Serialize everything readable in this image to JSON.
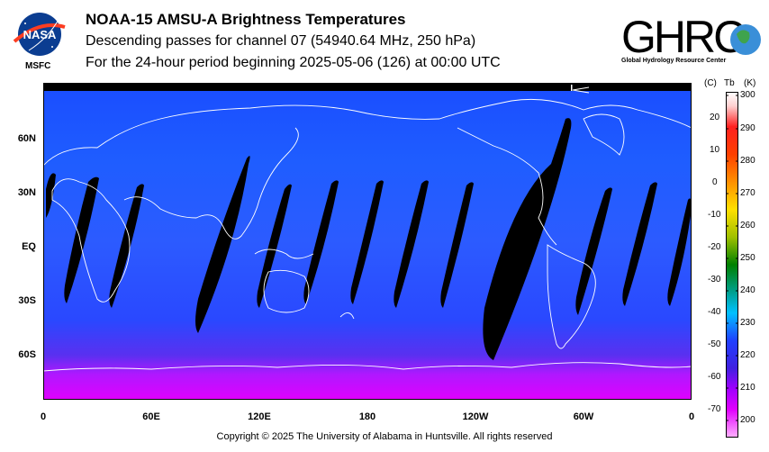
{
  "header": {
    "title": "NOAA-15 AMSU-A Brightness Temperatures",
    "subtitle": "Descending passes for channel 07 (54940.64 MHz, 250 hPa)",
    "period": "For the 24-hour period beginning 2025-05-06 (126) at 00:00 UTC"
  },
  "logos": {
    "nasa_text": "NASA",
    "msfc": "MSFC",
    "ghrc_text": "GHRC",
    "ghrc_subtitle": "Global Hydrology Resource Center"
  },
  "map": {
    "lat_labels": [
      "60N",
      "30N",
      "EQ",
      "30S",
      "60S"
    ],
    "lon_labels": [
      "0",
      "60E",
      "120E",
      "180",
      "120W",
      "60W",
      "0"
    ],
    "colors": {
      "background_top": "#1d5cff",
      "background_mid": "#2a55ff",
      "polar_south": "#c000ff",
      "gap": "#000000",
      "coast": "#ffffff"
    }
  },
  "colorbar": {
    "unit_c": "(C)",
    "unit_tb": "Tb",
    "unit_k": "(K)",
    "celsius_labels": [
      "20",
      "10",
      "0",
      "-10",
      "-20",
      "-30",
      "-40",
      "-50",
      "-60",
      "-70"
    ],
    "kelvin_labels": [
      "300",
      "290",
      "280",
      "270",
      "260",
      "250",
      "240",
      "230",
      "220",
      "210",
      "200"
    ]
  },
  "footer": {
    "copyright": "Copyright © 2025 The University of Alabama in Huntsville.  All rights reserved"
  }
}
